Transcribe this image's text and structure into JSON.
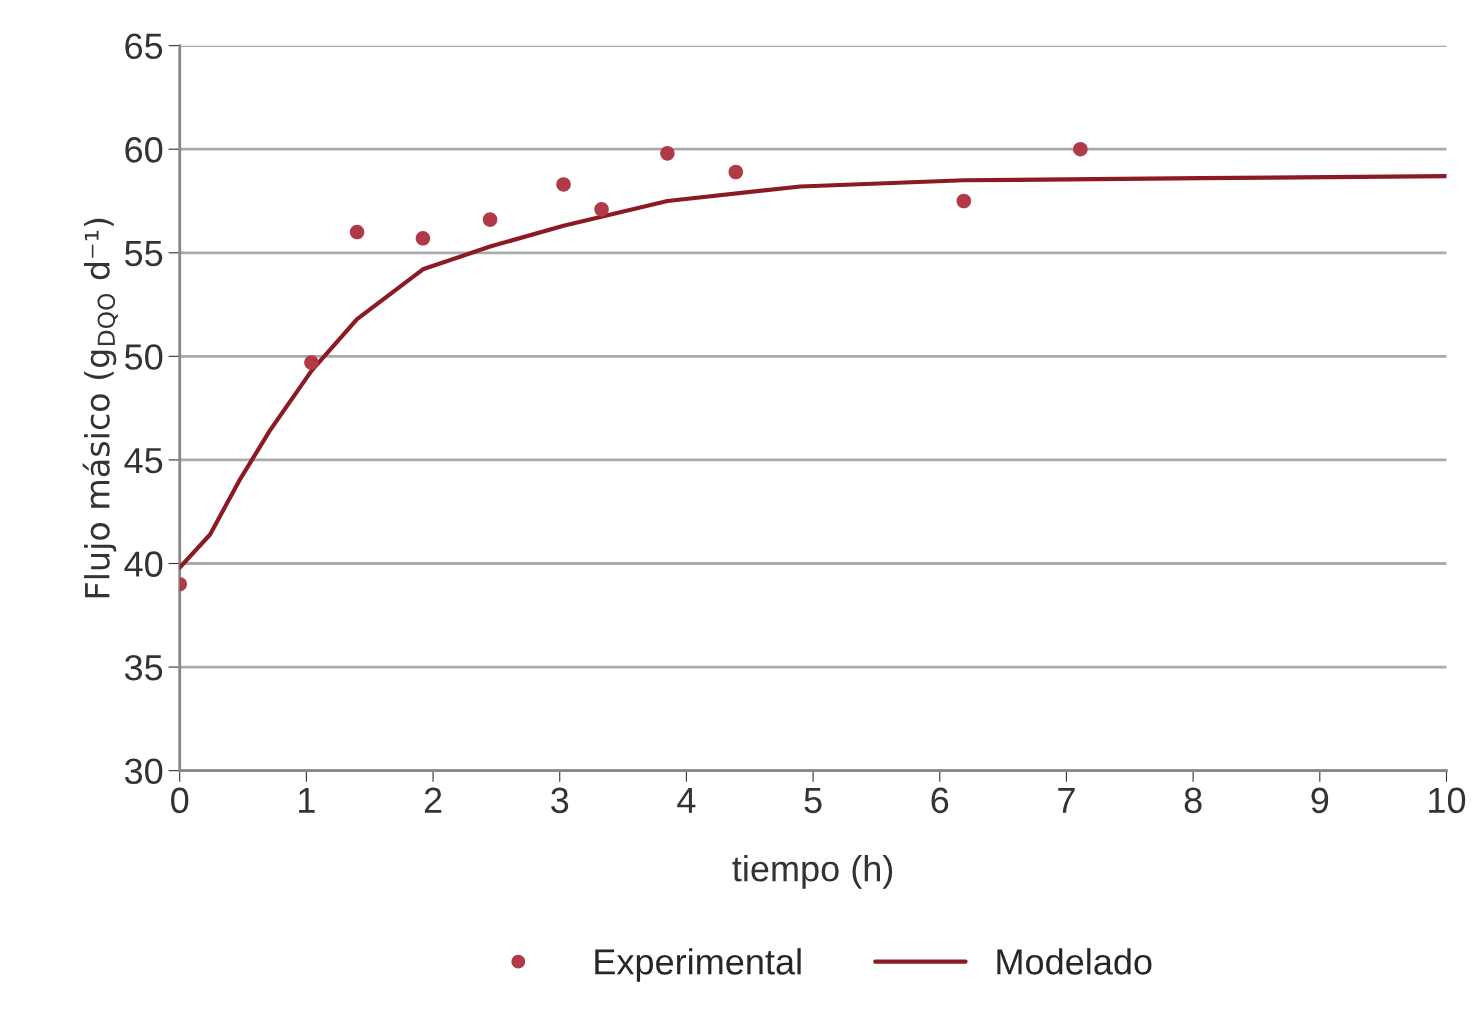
{
  "chart_data": {
    "type": "scatter",
    "xlabel": "tiempo (h)",
    "ylabel": "Flujo másico (g$_{DQO}$ d⁻¹)",
    "xlim": [
      0,
      10
    ],
    "xticks": [
      0,
      1,
      2,
      3,
      4,
      5,
      6,
      7,
      8,
      9,
      10
    ],
    "ylim": [
      30,
      65
    ],
    "yticks": [
      30,
      35,
      40,
      45,
      50,
      55,
      60,
      65
    ],
    "grid": "y",
    "legend": "bottom",
    "series": [
      {
        "name": "Experimental",
        "marker": "circle",
        "color": "#b03a48",
        "x": [
          0,
          1.04,
          1.4,
          1.92,
          2.45,
          3.03,
          3.33,
          3.85,
          4.39,
          6.19,
          7.11
        ],
        "values": [
          39.0,
          49.7,
          56.0,
          55.7,
          56.6,
          58.3,
          57.1,
          59.8,
          58.9,
          57.5,
          60.0
        ]
      },
      {
        "name": "Modelado",
        "type": "line",
        "line_style": "solid",
        "color": "#8b1a24",
        "x": [
          0,
          0.24,
          0.47,
          0.71,
          1.04,
          1.4,
          1.92,
          2.45,
          3.03,
          3.85,
          4.9,
          6.19,
          8.06,
          10
        ],
        "values": [
          39.8,
          41.4,
          44.0,
          46.4,
          49.3,
          51.8,
          54.2,
          55.3,
          56.3,
          57.5,
          58.2,
          58.5,
          58.6,
          58.7
        ]
      }
    ]
  }
}
